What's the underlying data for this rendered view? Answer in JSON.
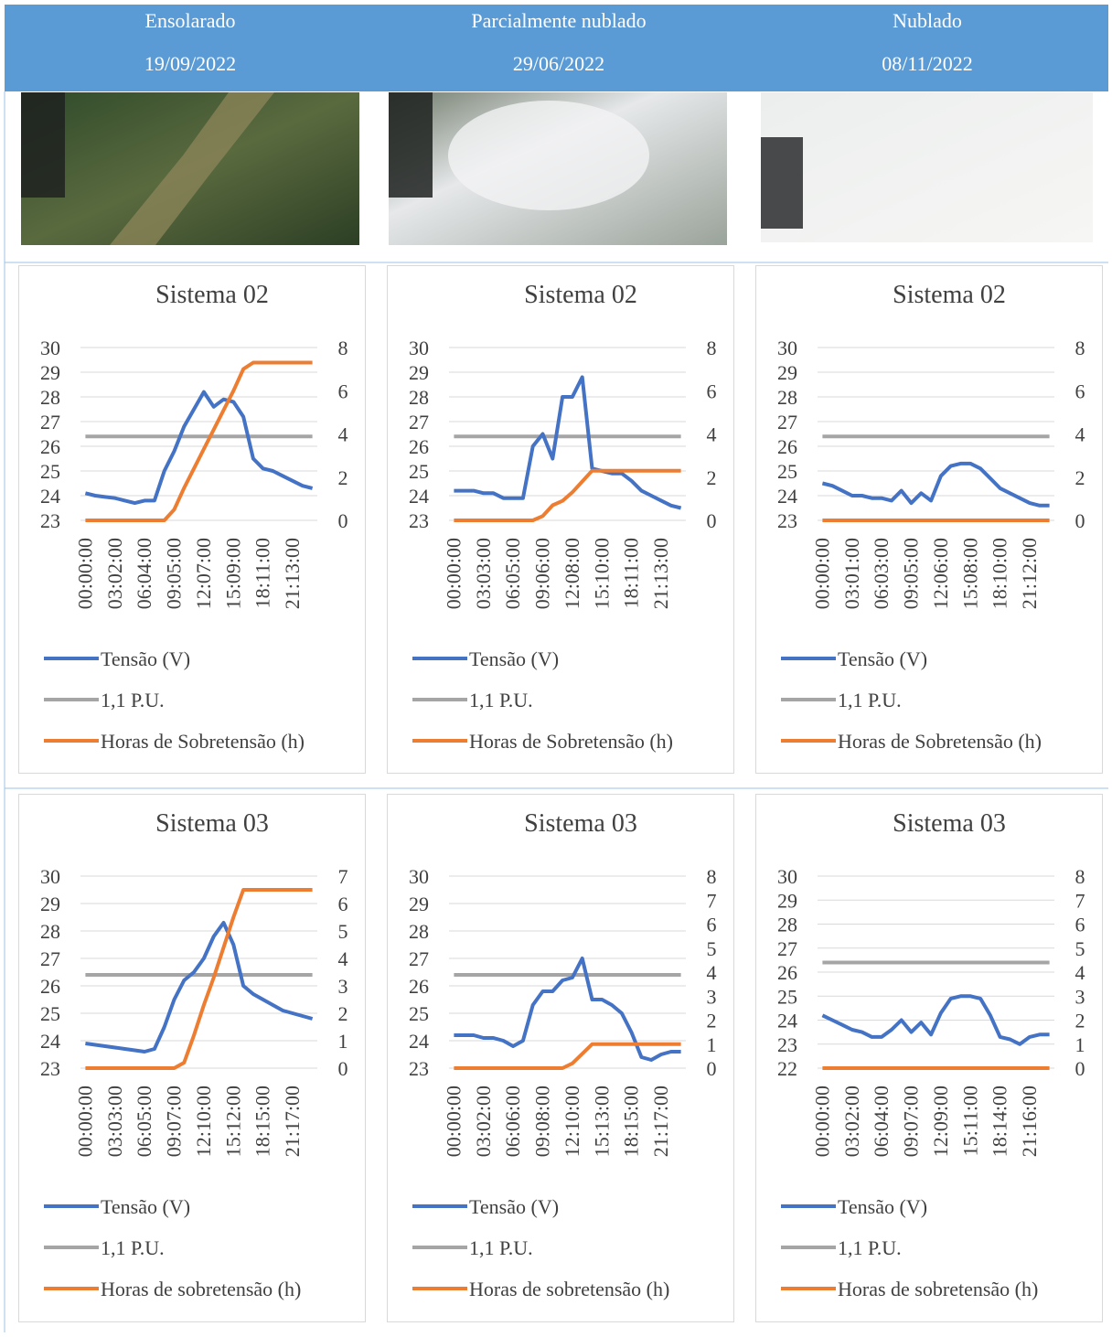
{
  "header": [
    {
      "condition": "Ensolarado",
      "date": "19/09/2022"
    },
    {
      "condition": "Parcialmente nublado",
      "date": "29/06/2022"
    },
    {
      "condition": "Nublado",
      "date": "08/11/2022"
    }
  ],
  "chart_data": [
    {
      "type": "line",
      "title": "Sistema 02",
      "categories": [
        "00:00:00",
        null,
        null,
        "03:02:00",
        null,
        null,
        "06:04:00",
        null,
        null,
        "09:05:00",
        null,
        null,
        "12:07:00",
        null,
        null,
        "15:09:00",
        null,
        null,
        "18:11:00",
        null,
        null,
        "21:13:00",
        null,
        null
      ],
      "series": [
        {
          "name": "Tensão (V)",
          "color": "#4472c4",
          "values": [
            24.1,
            24.0,
            23.95,
            23.9,
            23.8,
            23.7,
            23.8,
            23.8,
            25.0,
            25.8,
            26.8,
            27.5,
            28.2,
            27.6,
            27.9,
            27.8,
            27.2,
            25.5,
            25.1,
            25.0,
            24.8,
            24.6,
            24.4,
            24.3
          ]
        },
        {
          "name": "1,1 P.U.",
          "color": "#a5a5a5",
          "values": [
            26.4,
            26.4,
            26.4,
            26.4,
            26.4,
            26.4,
            26.4,
            26.4,
            26.4,
            26.4,
            26.4,
            26.4,
            26.4,
            26.4,
            26.4,
            26.4,
            26.4,
            26.4,
            26.4,
            26.4,
            26.4,
            26.4,
            26.4,
            26.4
          ]
        },
        {
          "name": "Horas de Sobretensão (h)",
          "color": "#ed7d31",
          "axis": "y2",
          "values": [
            0,
            0,
            0,
            0,
            0,
            0,
            0,
            0,
            0,
            0.5,
            1.5,
            2.4,
            3.3,
            4.2,
            5.1,
            6.0,
            7.0,
            7.3,
            7.3,
            7.3,
            7.3,
            7.3,
            7.3,
            7.3
          ]
        }
      ],
      "ylim": [
        23,
        30
      ],
      "yticks": [
        23,
        24,
        25,
        26,
        27,
        28,
        29,
        30
      ],
      "y2lim": [
        0,
        8
      ],
      "y2ticks": [
        0,
        2,
        4,
        6,
        8
      ],
      "grid": true,
      "legend": "bottom"
    },
    {
      "type": "line",
      "title": "Sistema 02",
      "categories": [
        "00:00:00",
        null,
        null,
        "03:03:00",
        null,
        null,
        "06:05:00",
        null,
        null,
        "09:06:00",
        null,
        null,
        "12:08:00",
        null,
        null,
        "15:10:00",
        null,
        null,
        "18:11:00",
        null,
        null,
        "21:13:00",
        null,
        null
      ],
      "series": [
        {
          "name": "Tensão (V)",
          "color": "#4472c4",
          "values": [
            24.2,
            24.2,
            24.2,
            24.1,
            24.1,
            23.9,
            23.9,
            23.9,
            26.0,
            26.5,
            25.5,
            28.0,
            28.0,
            28.8,
            25.1,
            25.0,
            24.9,
            24.9,
            24.6,
            24.2,
            24.0,
            23.8,
            23.6,
            23.5
          ]
        },
        {
          "name": "1,1 P.U.",
          "color": "#a5a5a5",
          "values": [
            26.4,
            26.4,
            26.4,
            26.4,
            26.4,
            26.4,
            26.4,
            26.4,
            26.4,
            26.4,
            26.4,
            26.4,
            26.4,
            26.4,
            26.4,
            26.4,
            26.4,
            26.4,
            26.4,
            26.4,
            26.4,
            26.4,
            26.4,
            26.4
          ]
        },
        {
          "name": "Horas de Sobretensão (h)",
          "color": "#ed7d31",
          "axis": "y2",
          "values": [
            0,
            0,
            0,
            0,
            0,
            0,
            0,
            0,
            0,
            0.2,
            0.7,
            0.9,
            1.3,
            1.8,
            2.3,
            2.3,
            2.3,
            2.3,
            2.3,
            2.3,
            2.3,
            2.3,
            2.3,
            2.3
          ]
        }
      ],
      "ylim": [
        23,
        30
      ],
      "yticks": [
        23,
        24,
        25,
        26,
        27,
        28,
        29,
        30
      ],
      "y2lim": [
        0,
        8
      ],
      "y2ticks": [
        0,
        2,
        4,
        6,
        8
      ],
      "grid": true,
      "legend": "bottom"
    },
    {
      "type": "line",
      "title": "Sistema 02",
      "categories": [
        "00:00:00",
        null,
        null,
        "03:01:00",
        null,
        null,
        "06:03:00",
        null,
        null,
        "09:05:00",
        null,
        null,
        "12:06:00",
        null,
        null,
        "15:08:00",
        null,
        null,
        "18:10:00",
        null,
        null,
        "21:12:00",
        null,
        null
      ],
      "series": [
        {
          "name": "Tensão (V)",
          "color": "#4472c4",
          "values": [
            24.5,
            24.4,
            24.2,
            24.0,
            24.0,
            23.9,
            23.9,
            23.8,
            24.2,
            23.7,
            24.1,
            23.8,
            24.8,
            25.2,
            25.3,
            25.3,
            25.1,
            24.7,
            24.3,
            24.1,
            23.9,
            23.7,
            23.6,
            23.6
          ]
        },
        {
          "name": "1,1 P.U.",
          "color": "#a5a5a5",
          "values": [
            26.4,
            26.4,
            26.4,
            26.4,
            26.4,
            26.4,
            26.4,
            26.4,
            26.4,
            26.4,
            26.4,
            26.4,
            26.4,
            26.4,
            26.4,
            26.4,
            26.4,
            26.4,
            26.4,
            26.4,
            26.4,
            26.4,
            26.4,
            26.4
          ]
        },
        {
          "name": "Horas de Sobretensão (h)",
          "color": "#ed7d31",
          "axis": "y2",
          "values": [
            0,
            0,
            0,
            0,
            0,
            0,
            0,
            0,
            0,
            0,
            0,
            0,
            0,
            0,
            0,
            0,
            0,
            0,
            0,
            0,
            0,
            0,
            0,
            0
          ]
        }
      ],
      "ylim": [
        23,
        30
      ],
      "yticks": [
        23,
        24,
        25,
        26,
        27,
        28,
        29,
        30
      ],
      "y2lim": [
        0,
        8
      ],
      "y2ticks": [
        0,
        2,
        4,
        6,
        8
      ],
      "grid": true,
      "legend": "bottom"
    },
    {
      "type": "line",
      "title": "Sistema 03",
      "categories": [
        "00:00:00",
        null,
        null,
        "03:03:00",
        null,
        null,
        "06:05:00",
        null,
        null,
        "09:07:00",
        null,
        null,
        "12:10:00",
        null,
        null,
        "15:12:00",
        null,
        null,
        "18:15:00",
        null,
        null,
        "21:17:00",
        null,
        null
      ],
      "series": [
        {
          "name": "Tensão (V)",
          "color": "#4472c4",
          "values": [
            23.9,
            23.85,
            23.8,
            23.75,
            23.7,
            23.65,
            23.6,
            23.7,
            24.5,
            25.5,
            26.2,
            26.5,
            27.0,
            27.8,
            28.3,
            27.5,
            26.0,
            25.7,
            25.5,
            25.3,
            25.1,
            25.0,
            24.9,
            24.8
          ]
        },
        {
          "name": "1,1 P.U.",
          "color": "#a5a5a5",
          "values": [
            26.4,
            26.4,
            26.4,
            26.4,
            26.4,
            26.4,
            26.4,
            26.4,
            26.4,
            26.4,
            26.4,
            26.4,
            26.4,
            26.4,
            26.4,
            26.4,
            26.4,
            26.4,
            26.4,
            26.4,
            26.4,
            26.4,
            26.4,
            26.4
          ]
        },
        {
          "name": "Horas de sobretensão (h)",
          "color": "#ed7d31",
          "axis": "y2",
          "values": [
            0,
            0,
            0,
            0,
            0,
            0,
            0,
            0,
            0,
            0,
            0.2,
            1.2,
            2.3,
            3.3,
            4.4,
            5.5,
            6.5,
            6.5,
            6.5,
            6.5,
            6.5,
            6.5,
            6.5,
            6.5
          ]
        }
      ],
      "ylim": [
        23,
        30
      ],
      "yticks": [
        23,
        24,
        25,
        26,
        27,
        28,
        29,
        30
      ],
      "y2lim": [
        0,
        7
      ],
      "y2ticks": [
        0,
        1,
        2,
        3,
        4,
        5,
        6,
        7
      ],
      "grid": true,
      "legend": "bottom"
    },
    {
      "type": "line",
      "title": "Sistema 03",
      "categories": [
        "00:00:00",
        null,
        null,
        "03:02:00",
        null,
        null,
        "06:06:00",
        null,
        null,
        "09:08:00",
        null,
        null,
        "12:10:00",
        null,
        null,
        "15:13:00",
        null,
        null,
        "18:15:00",
        null,
        null,
        "21:17:00",
        null,
        null
      ],
      "series": [
        {
          "name": "Tensão (V)",
          "color": "#4472c4",
          "values": [
            24.2,
            24.2,
            24.2,
            24.1,
            24.1,
            24.0,
            23.8,
            24.0,
            25.3,
            25.8,
            25.8,
            26.2,
            26.3,
            27.0,
            25.5,
            25.5,
            25.3,
            25.0,
            24.3,
            23.4,
            23.3,
            23.5,
            23.6,
            23.6
          ]
        },
        {
          "name": "1,1 P.U.",
          "color": "#a5a5a5",
          "values": [
            26.4,
            26.4,
            26.4,
            26.4,
            26.4,
            26.4,
            26.4,
            26.4,
            26.4,
            26.4,
            26.4,
            26.4,
            26.4,
            26.4,
            26.4,
            26.4,
            26.4,
            26.4,
            26.4,
            26.4,
            26.4,
            26.4,
            26.4,
            26.4
          ]
        },
        {
          "name": "Horas de sobretensão (h)",
          "color": "#ed7d31",
          "axis": "y2",
          "values": [
            0,
            0,
            0,
            0,
            0,
            0,
            0,
            0,
            0,
            0,
            0,
            0,
            0.2,
            0.6,
            1.0,
            1.0,
            1.0,
            1.0,
            1.0,
            1.0,
            1.0,
            1.0,
            1.0,
            1.0
          ]
        }
      ],
      "ylim": [
        23,
        30
      ],
      "yticks": [
        23,
        24,
        25,
        26,
        27,
        28,
        29,
        30
      ],
      "y2lim": [
        0,
        8
      ],
      "y2ticks": [
        0,
        1,
        2,
        3,
        4,
        5,
        6,
        7,
        8
      ],
      "grid": true,
      "legend": "bottom"
    },
    {
      "type": "line",
      "title": "Sistema 03",
      "categories": [
        "00:00:00",
        null,
        null,
        "03:02:00",
        null,
        null,
        "06:04:00",
        null,
        null,
        "09:07:00",
        null,
        null,
        "12:09:00",
        null,
        null,
        "15:11:00",
        null,
        null,
        "18:14:00",
        null,
        null,
        "21:16:00",
        null,
        null
      ],
      "series": [
        {
          "name": "Tensão (V)",
          "color": "#4472c4",
          "values": [
            24.2,
            24.0,
            23.8,
            23.6,
            23.5,
            23.3,
            23.3,
            23.6,
            24.0,
            23.5,
            23.9,
            23.4,
            24.3,
            24.9,
            25.0,
            25.0,
            24.9,
            24.2,
            23.3,
            23.2,
            23.0,
            23.3,
            23.4,
            23.4
          ]
        },
        {
          "name": "1,1 P.U.",
          "color": "#a5a5a5",
          "values": [
            26.4,
            26.4,
            26.4,
            26.4,
            26.4,
            26.4,
            26.4,
            26.4,
            26.4,
            26.4,
            26.4,
            26.4,
            26.4,
            26.4,
            26.4,
            26.4,
            26.4,
            26.4,
            26.4,
            26.4,
            26.4,
            26.4,
            26.4,
            26.4
          ]
        },
        {
          "name": "Horas de sobretensão (h)",
          "color": "#ed7d31",
          "axis": "y2",
          "values": [
            0,
            0,
            0,
            0,
            0,
            0,
            0,
            0,
            0,
            0,
            0,
            0,
            0,
            0,
            0,
            0,
            0,
            0,
            0,
            0,
            0,
            0,
            0,
            0
          ]
        }
      ],
      "ylim": [
        22,
        30
      ],
      "yticks": [
        22,
        23,
        24,
        25,
        26,
        27,
        28,
        29,
        30
      ],
      "y2lim": [
        0,
        8
      ],
      "y2ticks": [
        0,
        1,
        2,
        3,
        4,
        5,
        6,
        7,
        8
      ],
      "grid": true,
      "legend": "bottom"
    }
  ]
}
